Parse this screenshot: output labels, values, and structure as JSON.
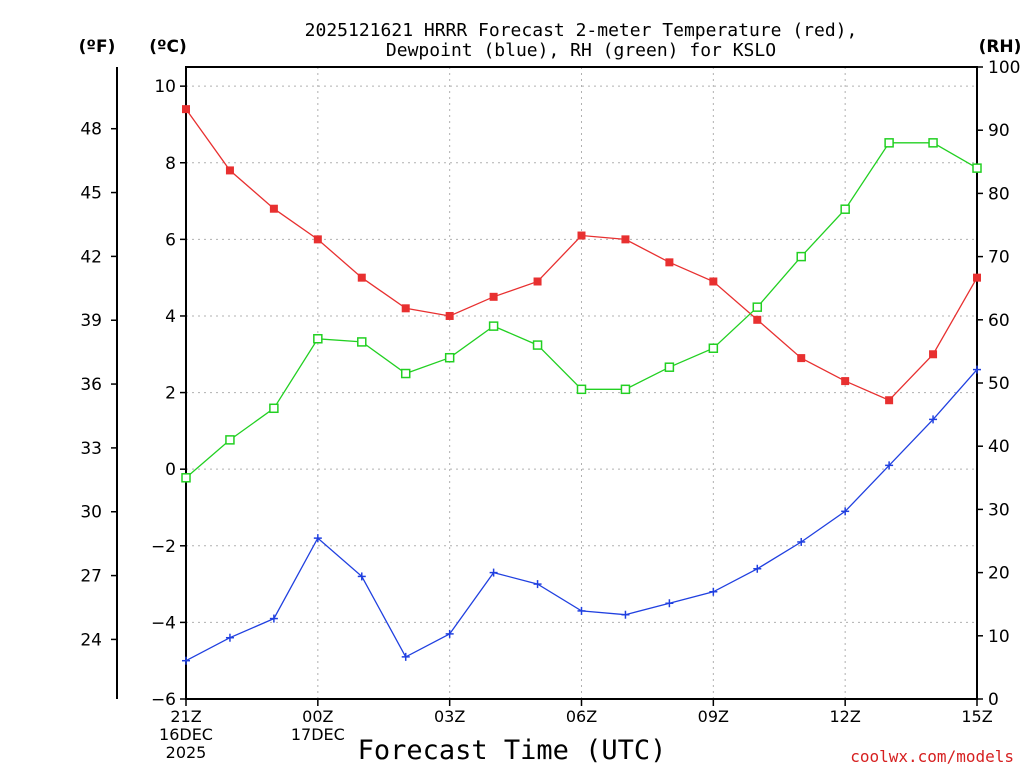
{
  "chart_data": {
    "type": "line",
    "title": [
      "2025121621 HRRR Forecast 2-meter Temperature (red),",
      "Dewpoint (blue), RH (green) for KSLO"
    ],
    "xlabel": "Forecast Time (UTC)",
    "credit": "coolwx.com/models",
    "units": {
      "fahrenheit": "(ºF)",
      "celsius": "(ºC)",
      "rh": "(RH)"
    },
    "hours": [
      "21Z",
      "22Z",
      "23Z",
      "00Z",
      "01Z",
      "02Z",
      "03Z",
      "04Z",
      "05Z",
      "06Z",
      "07Z",
      "08Z",
      "09Z",
      "10Z",
      "11Z",
      "12Z",
      "13Z",
      "14Z",
      "15Z"
    ],
    "x_ticks": [
      {
        "index": 0,
        "lines": [
          "21Z",
          "16DEC",
          "2025"
        ]
      },
      {
        "index": 3,
        "lines": [
          "00Z",
          "17DEC"
        ]
      },
      {
        "index": 6,
        "lines": [
          "03Z"
        ]
      },
      {
        "index": 9,
        "lines": [
          "06Z"
        ]
      },
      {
        "index": 12,
        "lines": [
          "09Z"
        ]
      },
      {
        "index": 15,
        "lines": [
          "12Z"
        ]
      },
      {
        "index": 18,
        "lines": [
          "15Z"
        ]
      }
    ],
    "celsius_axis": {
      "range": [
        -6,
        10.5
      ],
      "ticks": [
        -6,
        -4,
        -2,
        0,
        2,
        4,
        6,
        8,
        10
      ]
    },
    "fahrenheit_axis": {
      "ticks": [
        24,
        27,
        30,
        33,
        36,
        39,
        42,
        45,
        48
      ]
    },
    "rh_axis": {
      "range": [
        0,
        100
      ],
      "ticks": [
        0,
        10,
        20,
        30,
        40,
        50,
        60,
        70,
        80,
        90,
        100
      ]
    },
    "series": [
      {
        "name": "2-meter Temperature",
        "axis": "celsius",
        "color": "#e83030",
        "marker": "filled-square",
        "values": [
          9.4,
          7.8,
          6.8,
          6.0,
          5.0,
          4.2,
          4.0,
          4.5,
          4.9,
          6.1,
          6.0,
          5.4,
          4.9,
          3.9,
          2.9,
          2.3,
          1.8,
          3.0,
          5.0
        ]
      },
      {
        "name": "Dewpoint",
        "axis": "celsius",
        "color": "#2040e0",
        "marker": "plus",
        "values": [
          -5.0,
          -4.4,
          -3.9,
          -1.8,
          -2.8,
          -4.9,
          -4.3,
          -2.7,
          -3.0,
          -3.7,
          -3.8,
          -3.5,
          -3.2,
          -2.6,
          -1.9,
          -1.1,
          0.1,
          1.3,
          2.6
        ]
      },
      {
        "name": "RH",
        "axis": "rh",
        "color": "#22d022",
        "marker": "open-square",
        "values": [
          35,
          41,
          46,
          57,
          56.5,
          51.5,
          54,
          59,
          56,
          49,
          49,
          52.5,
          55.5,
          62,
          70,
          77.5,
          88,
          88,
          84
        ]
      }
    ],
    "grid": true
  }
}
